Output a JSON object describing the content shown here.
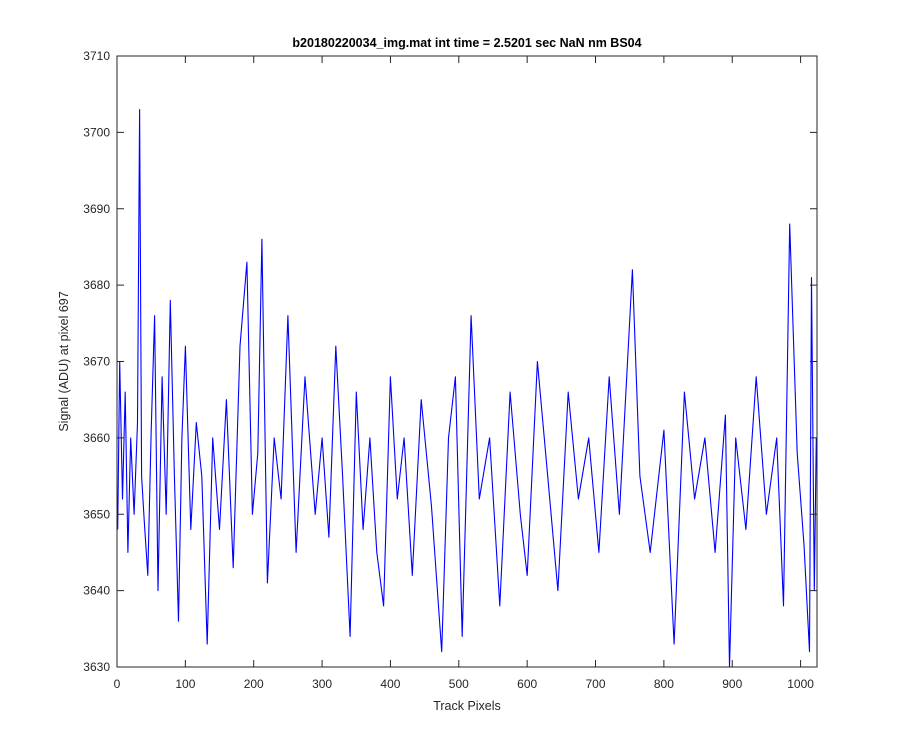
{
  "chart_data": {
    "type": "line",
    "title": "b20180220034_img.mat int time = 2.5201 sec  NaN nm BS04",
    "xlabel": "Track Pixels",
    "ylabel": "Signal (ADU) at pixel 697",
    "xlim": [
      0,
      1024
    ],
    "ylim": [
      3630,
      3710
    ],
    "xticks": [
      0,
      100,
      200,
      300,
      400,
      500,
      600,
      700,
      800,
      900,
      1000
    ],
    "yticks": [
      3630,
      3640,
      3650,
      3660,
      3670,
      3680,
      3690,
      3700,
      3710
    ],
    "grid": false,
    "series_color": "#0000ff",
    "series": [
      {
        "x": [
          1,
          4,
          8,
          12,
          16,
          20,
          25,
          30,
          33,
          36,
          40,
          45,
          50,
          55,
          60,
          66,
          72,
          78,
          84,
          90,
          95,
          100,
          108,
          116,
          124,
          132,
          140,
          150,
          160,
          170,
          180,
          190,
          198,
          206,
          212,
          220,
          230,
          240,
          250,
          262,
          275,
          290,
          300,
          310,
          320,
          330,
          341,
          350,
          360,
          370,
          380,
          390,
          400,
          410,
          420,
          432,
          445,
          460,
          475,
          485,
          495,
          505,
          518,
          530,
          545,
          560,
          575,
          590,
          600,
          615,
          630,
          645,
          660,
          675,
          690,
          705,
          720,
          735,
          754,
          765,
          780,
          800,
          815,
          830,
          845,
          860,
          875,
          890,
          896,
          905,
          920,
          935,
          950,
          965,
          975,
          984,
          995,
          1005,
          1013,
          1016,
          1020,
          1023
        ],
        "y": [
          3648,
          3670,
          3652,
          3666,
          3645,
          3660,
          3650,
          3662,
          3703,
          3655,
          3649,
          3642,
          3661,
          3676,
          3640,
          3668,
          3650,
          3678,
          3655,
          3636,
          3660,
          3672,
          3648,
          3662,
          3655,
          3633,
          3660,
          3648,
          3665,
          3643,
          3672,
          3683,
          3650,
          3658,
          3686,
          3641,
          3660,
          3652,
          3676,
          3645,
          3668,
          3650,
          3660,
          3647,
          3672,
          3655,
          3634,
          3666,
          3648,
          3660,
          3645,
          3638,
          3668,
          3652,
          3660,
          3642,
          3665,
          3651,
          3632,
          3660,
          3668,
          3634,
          3676,
          3652,
          3660,
          3638,
          3666,
          3650,
          3642,
          3670,
          3655,
          3640,
          3666,
          3652,
          3660,
          3645,
          3668,
          3650,
          3682,
          3655,
          3645,
          3661,
          3633,
          3666,
          3652,
          3660,
          3645,
          3663,
          3630,
          3660,
          3648,
          3668,
          3650,
          3660,
          3638,
          3688,
          3658,
          3646,
          3632,
          3681,
          3640,
          3660
        ]
      }
    ]
  }
}
